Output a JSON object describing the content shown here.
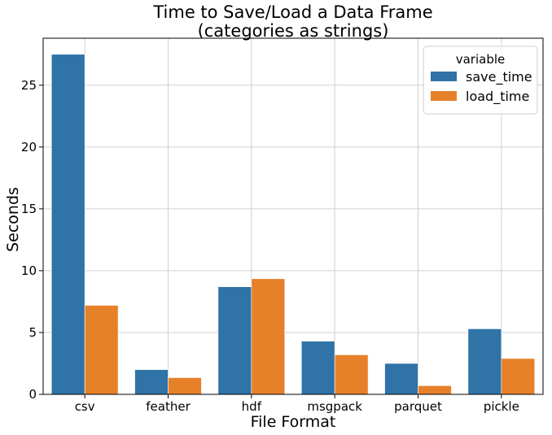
{
  "chart_data": {
    "type": "bar",
    "title_line1": "Time to Save/Load a Data Frame",
    "title_line2": "(categories as strings)",
    "xlabel": "File Format",
    "ylabel": "Seconds",
    "categories": [
      "csv",
      "feather",
      "hdf",
      "msgpack",
      "parquet",
      "pickle"
    ],
    "series": [
      {
        "name": "save_time",
        "color": "#2f73a7",
        "values": [
          27.5,
          2.0,
          8.7,
          4.3,
          2.5,
          5.3
        ]
      },
      {
        "name": "load_time",
        "color": "#e6812a",
        "values": [
          7.2,
          1.35,
          9.35,
          3.2,
          0.7,
          2.9
        ]
      }
    ],
    "ylim": [
      0,
      28.8
    ],
    "yticks": [
      0,
      5,
      10,
      15,
      20,
      25
    ],
    "grid": true,
    "legend": {
      "title": "variable",
      "placement": "top-right"
    }
  }
}
